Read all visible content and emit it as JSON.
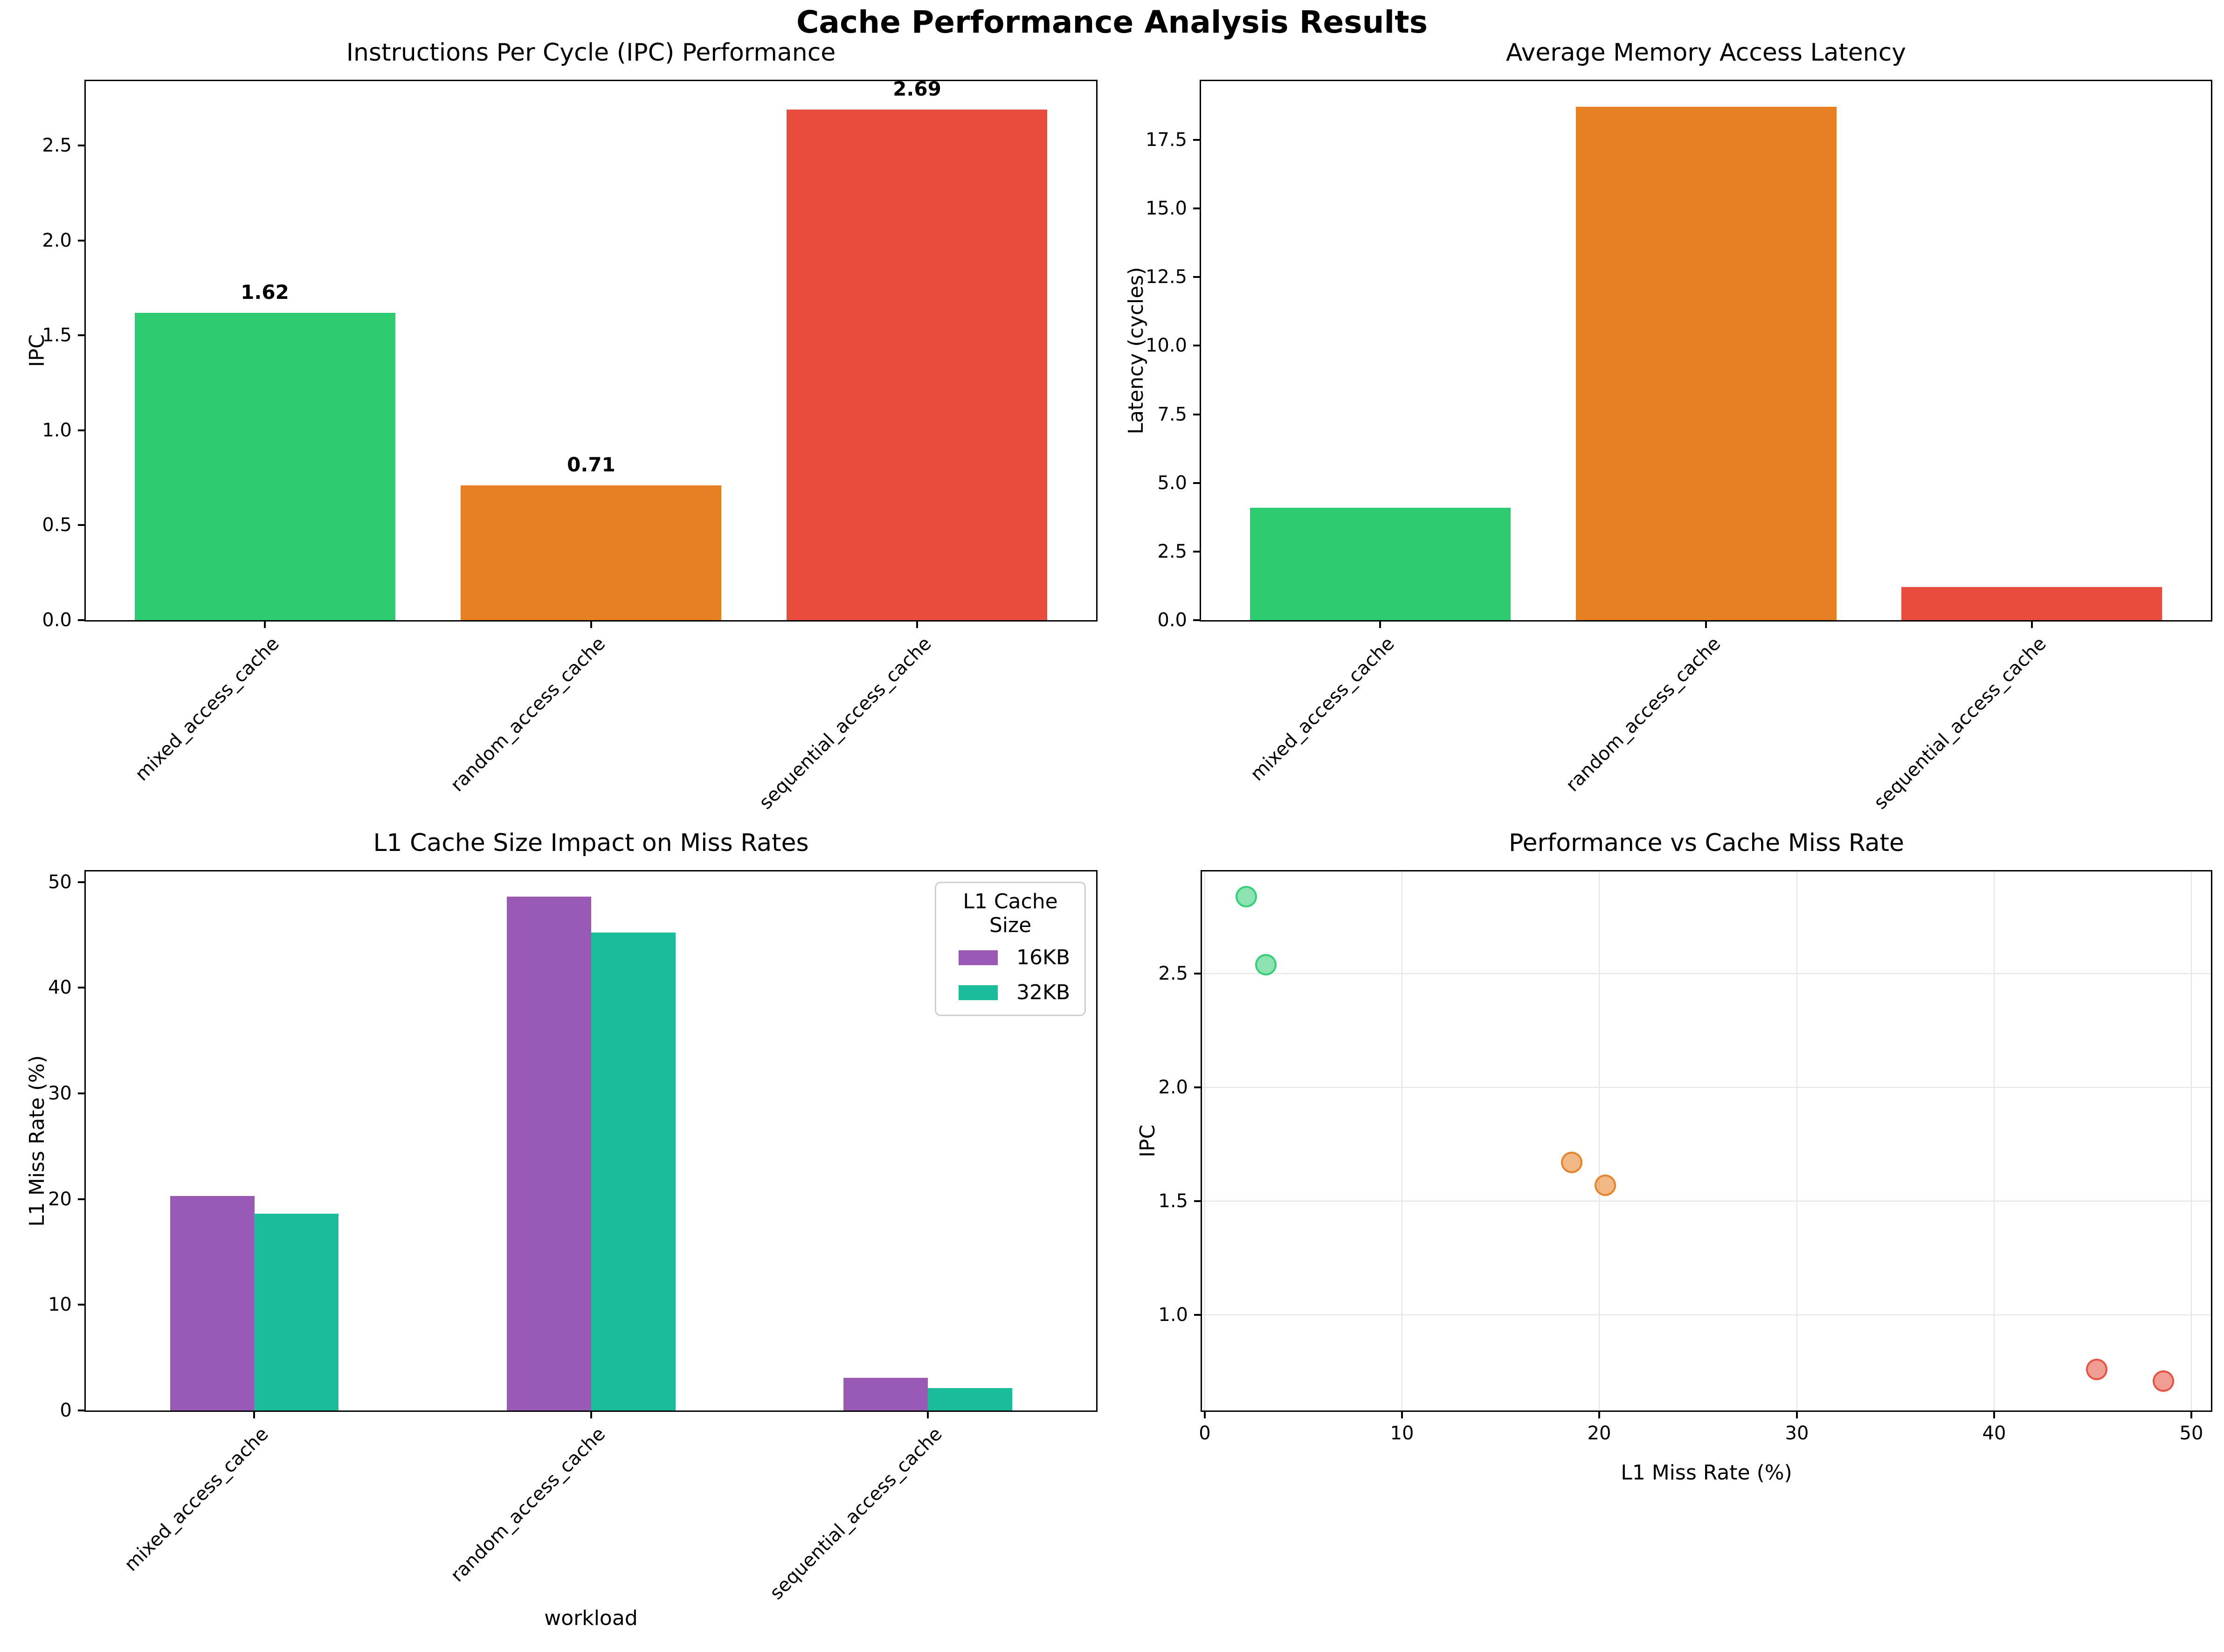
{
  "suptitle": "Cache Performance Analysis Results",
  "chart_data": [
    {
      "id": "ipc-bar",
      "type": "bar",
      "title": "Instructions Per Cycle (IPC) Performance",
      "ylabel": "IPC",
      "categories": [
        "mixed_access_cache",
        "random_access_cache",
        "sequential_access_cache"
      ],
      "values": [
        1.62,
        0.71,
        2.69
      ],
      "bar_value_labels": [
        "1.62",
        "0.71",
        "2.69"
      ],
      "bar_colors": [
        "#2ecc71",
        "#e67e22",
        "#e74c3c"
      ],
      "xlim": [
        -0.55,
        2.55
      ],
      "ylim": [
        0,
        2.84
      ],
      "bar_width": 0.8,
      "yticks": {
        "values": [
          0,
          0.5,
          1,
          1.5,
          2,
          2.5
        ],
        "labels": [
          "0.0",
          "0.5",
          "1.0",
          "1.5",
          "2.0",
          "2.5"
        ]
      },
      "grid": false
    },
    {
      "id": "latency-bar",
      "type": "bar",
      "title": "Average Memory Access Latency",
      "ylabel": "Latency (cycles)",
      "categories": [
        "mixed_access_cache",
        "random_access_cache",
        "sequential_access_cache"
      ],
      "values": [
        4.1,
        18.7,
        1.2
      ],
      "bar_colors": [
        "#2ecc71",
        "#e67e22",
        "#e74c3c"
      ],
      "xlim": [
        -0.55,
        2.55
      ],
      "ylim": [
        0,
        19.64
      ],
      "bar_width": 0.8,
      "yticks": {
        "values": [
          0,
          2.5,
          5,
          7.5,
          10,
          12.5,
          15,
          17.5
        ],
        "labels": [
          "0.0",
          "2.5",
          "5.0",
          "7.5",
          "10.0",
          "12.5",
          "15.0",
          "17.5"
        ]
      },
      "grid": false
    },
    {
      "id": "missrate-grouped-bar",
      "type": "bar",
      "title": "L1 Cache Size Impact on Miss Rates",
      "xlabel": "workload",
      "ylabel": "L1 Miss Rate (%)",
      "categories": [
        "mixed_access_cache",
        "random_access_cache",
        "sequential_access_cache"
      ],
      "series": [
        {
          "name": "16KB",
          "color": "#9b59b6",
          "values": [
            20.3,
            48.6,
            3.1
          ]
        },
        {
          "name": "32KB",
          "color": "#1abc9c",
          "values": [
            18.6,
            45.2,
            2.1
          ]
        }
      ],
      "legend_title": "L1 Cache Size",
      "legend_position": "upper right",
      "xlim": [
        -0.5,
        2.5
      ],
      "ylim": [
        0,
        51
      ],
      "group_bar_width": 0.25,
      "yticks": {
        "values": [
          0,
          10,
          20,
          30,
          40,
          50
        ],
        "labels": [
          "0",
          "10",
          "20",
          "30",
          "40",
          "50"
        ]
      },
      "grid": false
    },
    {
      "id": "ipc-vs-missrate-scatter",
      "type": "scatter",
      "title": "Performance vs Cache Miss Rate",
      "xlabel": "L1 Miss Rate (%)",
      "ylabel": "IPC",
      "points": [
        {
          "x": 2.1,
          "y": 2.84,
          "color": "#2ecc71"
        },
        {
          "x": 3.1,
          "y": 2.54,
          "color": "#2ecc71"
        },
        {
          "x": 18.6,
          "y": 1.67,
          "color": "#e67e22"
        },
        {
          "x": 20.3,
          "y": 1.57,
          "color": "#e67e22"
        },
        {
          "x": 45.2,
          "y": 0.76,
          "color": "#e74c3c"
        },
        {
          "x": 48.6,
          "y": 0.71,
          "color": "#e74c3c"
        }
      ],
      "xlim": [
        -0.15,
        51
      ],
      "ylim": [
        0.58,
        2.95
      ],
      "xticks": {
        "values": [
          0,
          10,
          20,
          30,
          40,
          50
        ],
        "labels": [
          "0",
          "10",
          "20",
          "30",
          "40",
          "50"
        ]
      },
      "yticks": {
        "values": [
          1,
          1.5,
          2,
          2.5
        ],
        "labels": [
          "1.0",
          "1.5",
          "2.0",
          "2.5"
        ]
      },
      "grid": true,
      "point_alpha": 0.6
    }
  ]
}
